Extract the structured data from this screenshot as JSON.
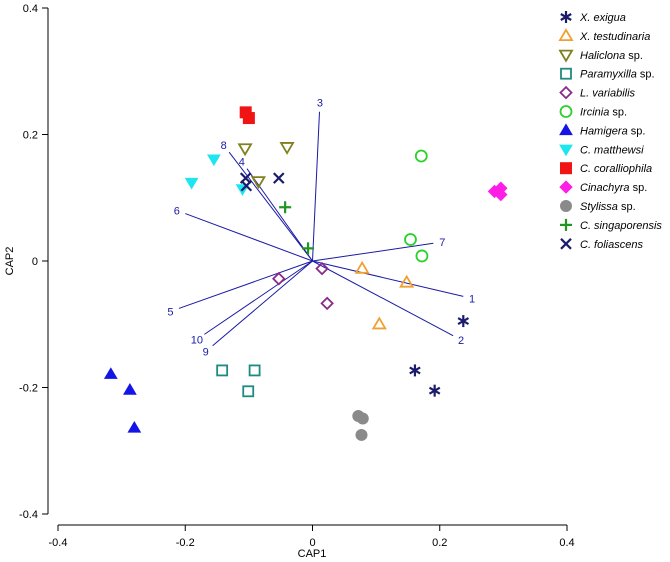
{
  "chart_data": {
    "type": "scatter",
    "title": "",
    "xlabel": "CAP1",
    "ylabel": "CAP2",
    "xlim": [
      -0.4,
      0.4
    ],
    "ylim": [
      -0.4,
      0.4
    ],
    "x_ticks": [
      "-0.4",
      "-0.2",
      "0",
      "0.2",
      "0.4"
    ],
    "y_ticks": [
      "0.4",
      "0.2",
      "0",
      "-0.2",
      "-0.4"
    ],
    "x_tick_values": [
      -0.4,
      -0.2,
      0,
      0.2,
      0.4
    ],
    "y_tick_values": [
      0.4,
      0.2,
      0,
      -0.2,
      -0.4
    ],
    "legend_position": "right",
    "series": [
      {
        "name": "X. exigua",
        "italic": "X. exigua",
        "suffix": "",
        "marker": "asterisk",
        "color": "#1b1b6b",
        "points": [
          [
            0.237,
            -0.095
          ],
          [
            0.161,
            -0.173
          ],
          [
            0.192,
            -0.205
          ]
        ]
      },
      {
        "name": "X. testudinaria",
        "italic": "X. testudinaria",
        "suffix": "",
        "marker": "triangle-open",
        "color": "#f0a030",
        "points": [
          [
            0.078,
            -0.012
          ],
          [
            0.148,
            -0.034
          ],
          [
            0.105,
            -0.1
          ]
        ]
      },
      {
        "name": "Haliclona sp.",
        "italic": "Haliclona",
        "suffix": " sp.",
        "marker": "triangle-down-open",
        "color": "#808020",
        "points": [
          [
            -0.106,
            0.178
          ],
          [
            -0.04,
            0.18
          ],
          [
            -0.085,
            0.126
          ]
        ]
      },
      {
        "name": "Paramyxilla sp.",
        "italic": "Paramyxilla",
        "suffix": " sp.",
        "marker": "square-open",
        "color": "#1e8a80",
        "points": [
          [
            -0.142,
            -0.173
          ],
          [
            -0.091,
            -0.173
          ],
          [
            -0.101,
            -0.206
          ]
        ]
      },
      {
        "name": "L. variabilis",
        "italic": "L. variabilis",
        "suffix": "",
        "marker": "diamond-open",
        "color": "#8a2a8a",
        "points": [
          [
            -0.053,
            -0.028
          ],
          [
            0.015,
            -0.012
          ],
          [
            0.023,
            -0.067
          ]
        ]
      },
      {
        "name": "Ircinia sp.",
        "italic": "Ircinia",
        "suffix": " sp.",
        "marker": "circle-open",
        "color": "#2ad12a",
        "points": [
          [
            0.171,
            0.166
          ],
          [
            0.154,
            0.034
          ],
          [
            0.172,
            0.008
          ]
        ]
      },
      {
        "name": "Hamigera sp.",
        "italic": "Hamigera",
        "suffix": " sp.",
        "marker": "triangle",
        "color": "#1414e6",
        "points": [
          [
            -0.317,
            -0.179
          ],
          [
            -0.287,
            -0.204
          ],
          [
            -0.28,
            -0.264
          ]
        ]
      },
      {
        "name": "C. matthewsi",
        "italic": "C. matthewsi",
        "suffix": "",
        "marker": "triangle-down",
        "color": "#1ee6f0",
        "points": [
          [
            -0.155,
            0.161
          ],
          [
            -0.19,
            0.124
          ],
          [
            -0.11,
            0.114
          ]
        ]
      },
      {
        "name": "C. coralliophila",
        "italic": "C. coralliophila",
        "suffix": "",
        "marker": "square",
        "color": "#f01414",
        "points": [
          [
            -0.105,
            0.235
          ],
          [
            -0.1,
            0.226
          ]
        ]
      },
      {
        "name": "Cinachyra sp.",
        "italic": "Cinachyra",
        "suffix": " sp.",
        "marker": "diamond",
        "color": "#ff1ee6",
        "points": [
          [
            0.286,
            0.11
          ],
          [
            0.296,
            0.115
          ],
          [
            0.296,
            0.105
          ]
        ]
      },
      {
        "name": "Stylissa sp.",
        "italic": "Stylissa",
        "suffix": " sp.",
        "marker": "circle",
        "color": "#8a8a8a",
        "points": [
          [
            0.072,
            -0.245
          ],
          [
            0.079,
            -0.249
          ],
          [
            0.077,
            -0.275
          ]
        ]
      },
      {
        "name": "C. singaporensis",
        "italic": "C. singaporensis",
        "suffix": "",
        "marker": "plus",
        "color": "#1e9620",
        "points": [
          [
            -0.043,
            0.085
          ],
          [
            -0.007,
            0.02
          ]
        ]
      },
      {
        "name": "C. foliascens",
        "italic": "C. foliascens",
        "suffix": "",
        "marker": "cross",
        "color": "#1b1b6b",
        "points": [
          [
            -0.105,
            0.131
          ],
          [
            -0.053,
            0.131
          ],
          [
            -0.104,
            0.119
          ]
        ]
      }
    ],
    "vectors": [
      {
        "label": "1",
        "end": [
          0.237,
          -0.056
        ]
      },
      {
        "label": "2",
        "end": [
          0.221,
          -0.118
        ]
      },
      {
        "label": "3",
        "end": [
          0.011,
          0.236
        ]
      },
      {
        "label": "4",
        "end": [
          -0.103,
          0.146
        ]
      },
      {
        "label": "5",
        "end": [
          -0.21,
          -0.075
        ]
      },
      {
        "label": "6",
        "end": [
          -0.2,
          0.075
        ]
      },
      {
        "label": "7",
        "end": [
          0.19,
          0.028
        ]
      },
      {
        "label": "8",
        "end": [
          -0.131,
          0.172
        ]
      },
      {
        "label": "9",
        "end": [
          -0.157,
          -0.134
        ]
      },
      {
        "label": "10",
        "end": [
          -0.17,
          -0.116
        ]
      }
    ],
    "vector_color": "#1a1aa6"
  }
}
